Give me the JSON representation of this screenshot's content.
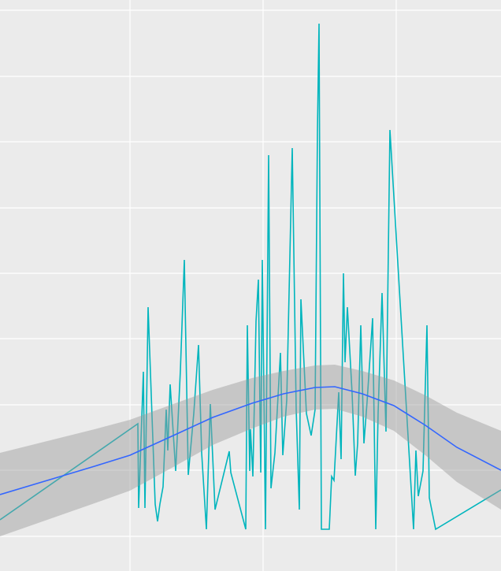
{
  "chart_data": {
    "type": "line",
    "background": "#ebebeb",
    "grid": true,
    "xlim": [
      0,
      636
    ],
    "ylim": [
      0,
      725
    ],
    "xticks": [
      165,
      334,
      503
    ],
    "yticks": [
      44,
      128,
      211,
      295,
      378,
      461,
      545,
      628,
      712
    ],
    "series": [
      {
        "color": "#00b5bd",
        "x": [
          0,
          175,
          176,
          182,
          184,
          188,
          197,
          200,
          203,
          207,
          211,
          213,
          216,
          223,
          229,
          234,
          239,
          246,
          252,
          256,
          262,
          267,
          273,
          291,
          293,
          312,
          314,
          317,
          318,
          321,
          325,
          328,
          331,
          333,
          337,
          341,
          344,
          349,
          356,
          359,
          364,
          371,
          376,
          380,
          382,
          389,
          395,
          400,
          403,
          405,
          408,
          418,
          421,
          424,
          430,
          433,
          436,
          438,
          441,
          447,
          451,
          454,
          458,
          462,
          466,
          473,
          477,
          480,
          485,
          490,
          495,
          525,
          528,
          531,
          537,
          542,
          545,
          553,
          636
        ],
        "values": [
          65,
          187,
          80,
          253,
          80,
          335,
          85,
          63,
          85,
          107,
          205,
          153,
          237,
          127,
          255,
          395,
          122,
          200,
          287,
          150,
          53,
          212,
          78,
          152,
          125,
          53,
          312,
          127,
          180,
          120,
          317,
          370,
          125,
          395,
          53,
          528,
          105,
          150,
          277,
          147,
          217,
          537,
          205,
          78,
          345,
          200,
          172,
          205,
          560,
          695,
          53,
          53,
          120,
          115,
          227,
          142,
          378,
          265,
          335,
          225,
          121,
          162,
          312,
          162,
          215,
          321,
          53,
          201,
          353,
          177,
          560,
          53,
          153,
          95,
          127,
          312,
          93,
          53,
          103
        ]
      },
      {
        "color": "#3366ff",
        "band_color": "rgba(153,153,153,0.45)",
        "x": [
          0,
          60,
          120,
          165,
          220,
          270,
          320,
          360,
          400,
          425,
          460,
          500,
          540,
          580,
          636
        ],
        "values": [
          97,
          115,
          133,
          147,
          172,
          195,
          213,
          225,
          233,
          234,
          225,
          210,
          185,
          157,
          128
        ],
        "lower": [
          44,
          65,
          86,
          102,
          132,
          160,
          181,
          196,
          205,
          206,
          196,
          178,
          147,
          113,
          78
        ],
        "upper": [
          150,
          165,
          180,
          192,
          212,
          230,
          245,
          254,
          261,
          262,
          254,
          242,
          223,
          201,
          178
        ]
      }
    ]
  }
}
